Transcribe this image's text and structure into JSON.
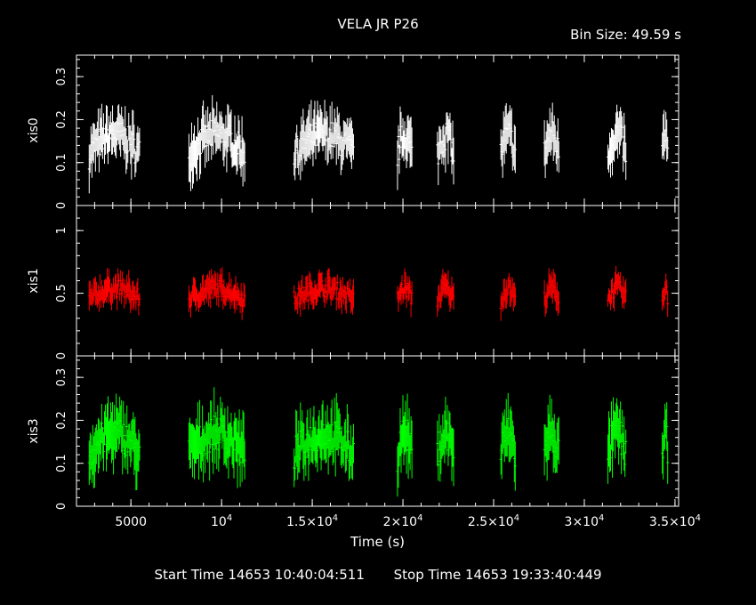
{
  "chart_title": "VELA JR P26",
  "bin_size_label": "Bin Size: 49.59 s",
  "footer": {
    "start": "Start Time 14653 10:40:04:511",
    "stop": "Stop Time 14653 19:33:40:449"
  },
  "chart_data": {
    "type": "scatter",
    "title": "VELA JR P26",
    "xlabel": "Time (s)",
    "xlim": [
      2000,
      35200
    ],
    "x_ticks": [
      {
        "v": 5000,
        "base": "5000",
        "exp": ""
      },
      {
        "v": 10000,
        "base": "10",
        "exp": "4"
      },
      {
        "v": 15000,
        "base": "1.5×10",
        "exp": "4"
      },
      {
        "v": 20000,
        "base": "2×10",
        "exp": "4"
      },
      {
        "v": 25000,
        "base": "2.5×10",
        "exp": "4"
      },
      {
        "v": 30000,
        "base": "3×10",
        "exp": "4"
      },
      {
        "v": 35000,
        "base": "3.5×10",
        "exp": "4"
      }
    ],
    "segments": [
      [
        2700,
        5500
      ],
      [
        8200,
        11300
      ],
      [
        14000,
        17300
      ],
      [
        19700,
        20500
      ],
      [
        21900,
        22800
      ],
      [
        25400,
        26200
      ],
      [
        27800,
        28600
      ],
      [
        31300,
        32300
      ],
      [
        34300,
        34600
      ]
    ],
    "series": [
      {
        "name": "xis0",
        "color": "#ffffff",
        "ylim": [
          0,
          0.35
        ],
        "ticks": [
          {
            "v": 0,
            "t": "0"
          },
          {
            "v": 0.1,
            "t": "0.1"
          },
          {
            "v": 0.2,
            "t": "0.2"
          },
          {
            "v": 0.3,
            "t": "0.3"
          }
        ],
        "mean": 0.12,
        "amp": 0.045,
        "spread": 0.07
      },
      {
        "name": "xis1",
        "color": "#ff0000",
        "ylim": [
          0,
          1.2
        ],
        "ticks": [
          {
            "v": 0,
            "t": "0"
          },
          {
            "v": 0.5,
            "t": "0.5"
          },
          {
            "v": 1,
            "t": "1"
          }
        ],
        "mean": 0.45,
        "amp": 0.09,
        "spread": 0.14
      },
      {
        "name": "xis3",
        "color": "#00ff00",
        "ylim": [
          0,
          0.35
        ],
        "ticks": [
          {
            "v": 0,
            "t": "0"
          },
          {
            "v": 0.1,
            "t": "0.1"
          },
          {
            "v": 0.2,
            "t": "0.2"
          },
          {
            "v": 0.3,
            "t": "0.3"
          }
        ],
        "mean": 0.12,
        "amp": 0.05,
        "spread": 0.08
      }
    ]
  }
}
